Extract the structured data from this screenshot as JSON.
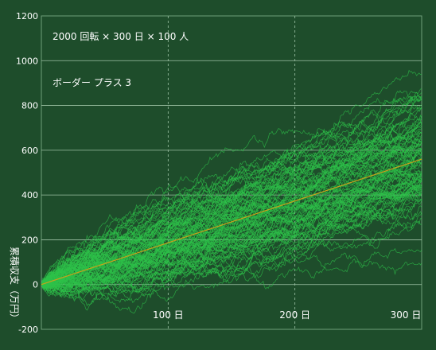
{
  "chart_data": {
    "type": "line",
    "annotation_1": "2000 回転 × 300 日 × 100 人",
    "annotation_2": "ボーダー プラス 3",
    "ylabel": "累積収支（万円）",
    "xlim": [
      0,
      300
    ],
    "ylim": [
      -200,
      1200
    ],
    "yticks": [
      -200,
      0,
      200,
      400,
      600,
      800,
      1000,
      1200
    ],
    "xticks": [
      100,
      200,
      300
    ],
    "xtick_labels": [
      "100 日",
      "200 日",
      "300 日"
    ],
    "grid": true,
    "num_simulated_series": 100,
    "simulated_series_spread": {
      "day": [
        0,
        100,
        200,
        300
      ],
      "low": [
        -20,
        -40,
        80,
        220
      ],
      "high": [
        30,
        350,
        650,
        1070
      ]
    },
    "expected_line": {
      "x": [
        0,
        300
      ],
      "y": [
        0,
        560
      ]
    },
    "colors": {
      "background": "#1e4d2b",
      "grid": "#9fc3a6",
      "series": "#2ec24a",
      "expected": "#c8a21a",
      "text": "#ffffff"
    }
  }
}
